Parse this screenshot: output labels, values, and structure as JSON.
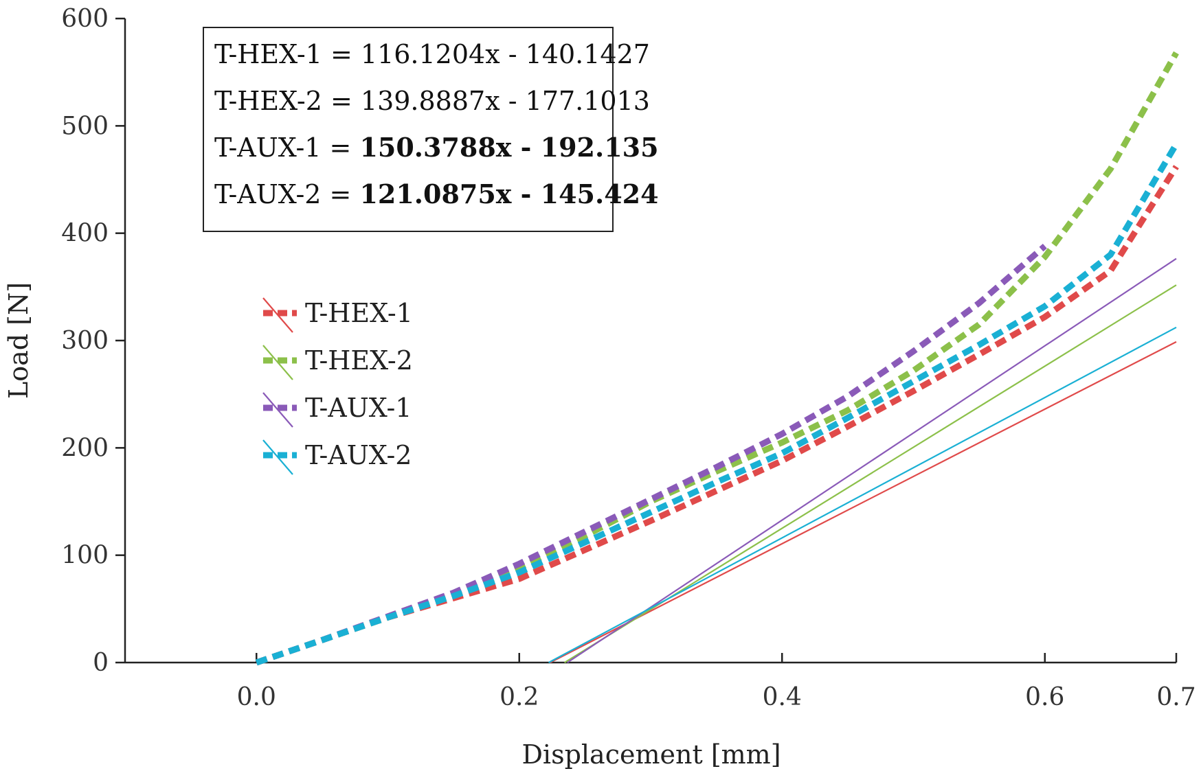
{
  "chart_data": {
    "type": "line",
    "title": "",
    "xlabel": "Displacement [mm]",
    "ylabel": "Load [N]",
    "xlim": [
      -0.1,
      0.7
    ],
    "ylim": [
      0,
      600
    ],
    "x_ticks": [
      "0.0",
      "0.2",
      "0.4",
      "0.6",
      "0.7"
    ],
    "x_tick_values": [
      0.0,
      0.2,
      0.4,
      0.6,
      0.7
    ],
    "y_ticks": [
      "0",
      "100",
      "200",
      "300",
      "400",
      "500",
      "600"
    ],
    "y_tick_values": [
      0,
      100,
      200,
      300,
      400,
      500,
      600
    ],
    "grid": false,
    "legend_position": "left",
    "series": [
      {
        "name": "T-HEX-1",
        "color": "#e04a4a",
        "measured": {
          "x": [
            0.0,
            0.05,
            0.1,
            0.15,
            0.2,
            0.25,
            0.3,
            0.35,
            0.4,
            0.45,
            0.5,
            0.55,
            0.6,
            0.65,
            0.7
          ],
          "y": [
            0,
            21,
            42,
            60,
            78,
            105,
            132,
            160,
            188,
            220,
            253,
            287,
            322,
            365,
            462
          ]
        },
        "fit": {
          "slope": 116.1204,
          "intercept": -140.1427,
          "scale": 5.4,
          "x0": 0.0,
          "x1": 0.7
        }
      },
      {
        "name": "T-HEX-2",
        "color": "#8cc04a",
        "measured": {
          "x": [
            0.0,
            0.05,
            0.1,
            0.15,
            0.2,
            0.25,
            0.3,
            0.35,
            0.4,
            0.45,
            0.5,
            0.55,
            0.6,
            0.65,
            0.7
          ],
          "y": [
            0,
            21,
            42,
            63,
            88,
            118,
            150,
            178,
            205,
            235,
            272,
            315,
            378,
            460,
            568
          ]
        },
        "fit": {
          "slope": 139.8887,
          "intercept": -177.1013,
          "scale": 5.4,
          "x0": 0.0,
          "x1": 0.7
        }
      },
      {
        "name": "T-AUX-1",
        "color": "#8a5ab8",
        "measured": {
          "x": [
            0.0,
            0.05,
            0.1,
            0.15,
            0.2,
            0.25,
            0.3,
            0.35,
            0.4,
            0.45,
            0.5,
            0.55,
            0.6
          ],
          "y": [
            0,
            21,
            43,
            65,
            92,
            122,
            152,
            182,
            213,
            248,
            290,
            335,
            388
          ]
        },
        "fit": {
          "slope": 150.3788,
          "intercept": -192.135,
          "scale": 5.4,
          "x0": 0.0,
          "x1": 0.7
        }
      },
      {
        "name": "T-AUX-2",
        "color": "#1ab0d4",
        "measured": {
          "x": [
            0.0,
            0.05,
            0.1,
            0.15,
            0.2,
            0.25,
            0.3,
            0.35,
            0.4,
            0.45,
            0.5,
            0.55,
            0.6,
            0.65,
            0.7
          ],
          "y": [
            0,
            21,
            42,
            62,
            84,
            112,
            140,
            168,
            195,
            228,
            262,
            296,
            332,
            380,
            483
          ]
        },
        "fit": {
          "slope": 121.0875,
          "intercept": -145.424,
          "scale": 5.4,
          "x0": 0.0,
          "x1": 0.7
        }
      }
    ],
    "equations": [
      {
        "prefix": "T-HEX-1 = ",
        "body": "116.1204x - 140.1427",
        "bold": false
      },
      {
        "prefix": "T-HEX-2 = ",
        "body": "139.8887x - 177.1013",
        "bold": false
      },
      {
        "prefix": "T-AUX-1 = ",
        "body": "150.3788x - 192.135",
        "bold": true
      },
      {
        "prefix": "T-AUX-2 = ",
        "body": "121.0875x - 145.424",
        "bold": true
      }
    ]
  }
}
